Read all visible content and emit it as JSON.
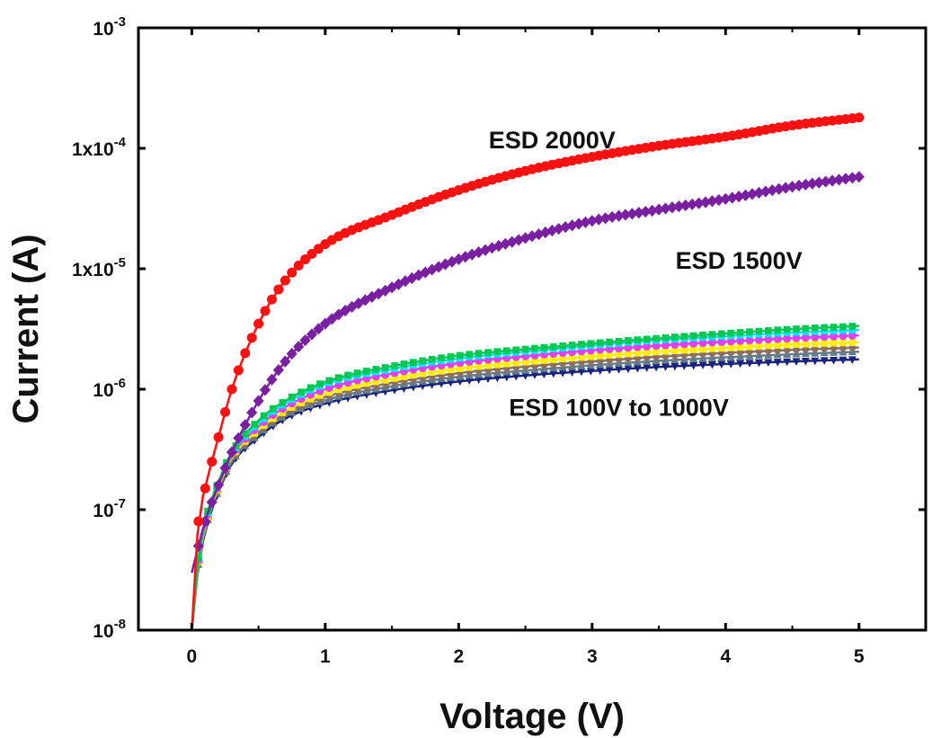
{
  "chart_data": {
    "type": "scatter",
    "title": "",
    "xlabel": "Voltage (V)",
    "ylabel": "Current (A)",
    "xlim": [
      -0.4,
      5.5
    ],
    "ylim": [
      1e-08,
      0.001
    ],
    "yscale": "log",
    "grid": false,
    "legend": "none",
    "x_ticks": [
      {
        "value": 0,
        "label": "0"
      },
      {
        "value": 1,
        "label": "1"
      },
      {
        "value": 2,
        "label": "2"
      },
      {
        "value": 3,
        "label": "3"
      },
      {
        "value": 4,
        "label": "4"
      },
      {
        "value": 5,
        "label": "5"
      }
    ],
    "y_ticks": [
      {
        "value": 1e-08,
        "base": "10",
        "exp": "-8"
      },
      {
        "value": 1e-07,
        "base": "10",
        "exp": "-7"
      },
      {
        "value": 1e-06,
        "base": "10",
        "exp": "-6"
      },
      {
        "value": 1e-05,
        "base": "1x10",
        "exp": "-5"
      },
      {
        "value": 0.0001,
        "base": "1x10",
        "exp": "-4"
      },
      {
        "value": 0.001,
        "base": "10",
        "exp": "-3"
      }
    ],
    "annotations": [
      {
        "text": "ESD 2000V",
        "x": 2.7,
        "y": 0.0001
      },
      {
        "text": "ESD 1500V",
        "x": 4.1,
        "y": 1e-05
      },
      {
        "text": "ESD 100V to 1000V",
        "x": 3.2,
        "y": 6e-07
      }
    ],
    "series": [
      {
        "color": "#ff1010",
        "marker": "circle",
        "x": [
          0,
          0.05,
          0.1,
          0.2,
          0.3,
          0.5,
          0.7,
          1.0,
          1.5,
          2.0,
          2.5,
          3.0,
          3.5,
          4.0,
          4.5,
          5.0
        ],
        "y": [
          1e-08,
          8e-08,
          1.5e-07,
          4e-07,
          1e-06,
          3.5e-06,
          8e-06,
          1.6e-05,
          2.8e-05,
          4.5e-05,
          6.5e-05,
          8.5e-05,
          0.000105,
          0.000125,
          0.000155,
          0.00018
        ]
      },
      {
        "color": "#7b1fa2",
        "marker": "diamond",
        "x": [
          0,
          0.05,
          0.1,
          0.2,
          0.3,
          0.5,
          0.7,
          1.0,
          1.5,
          2.0,
          2.5,
          3.0,
          3.5,
          4.0,
          4.5,
          5.0
        ],
        "y": [
          3e-08,
          5e-08,
          8e-08,
          1.6e-07,
          3e-07,
          8e-07,
          1.7e-06,
          3.5e-06,
          7e-06,
          1.2e-05,
          1.8e-05,
          2.5e-05,
          3.1e-05,
          3.8e-05,
          4.8e-05,
          5.8e-05
        ]
      },
      {
        "color": "#00c853",
        "marker": "square",
        "x": [
          0,
          0.05,
          0.1,
          0.2,
          0.3,
          0.5,
          0.7,
          1.0,
          1.5,
          2.0,
          2.5,
          3.0,
          3.5,
          4.0,
          4.5,
          5.0
        ],
        "y": [
          1e-08,
          4e-08,
          8e-08,
          1.7e-07,
          3e-07,
          5.5e-07,
          8e-07,
          1.15e-06,
          1.55e-06,
          1.9e-06,
          2.15e-06,
          2.4e-06,
          2.65e-06,
          2.9e-06,
          3.15e-06,
          3.35e-06
        ]
      },
      {
        "color": "#00e5ff",
        "marker": "triangle",
        "x": [
          0,
          0.05,
          0.1,
          0.2,
          0.3,
          0.5,
          0.7,
          1.0,
          1.5,
          2.0,
          2.5,
          3.0,
          3.5,
          4.0,
          4.5,
          5.0
        ],
        "y": [
          1e-08,
          4e-08,
          7.8e-08,
          1.65e-07,
          2.9e-07,
          5.2e-07,
          7.6e-07,
          1.1e-06,
          1.47e-06,
          1.8e-06,
          2.05e-06,
          2.3e-06,
          2.55e-06,
          2.75e-06,
          2.95e-06,
          3.1e-06
        ]
      },
      {
        "color": "#e040fb",
        "marker": "circle",
        "x": [
          0,
          0.05,
          0.1,
          0.2,
          0.3,
          0.5,
          0.7,
          1.0,
          1.5,
          2.0,
          2.5,
          3.0,
          3.5,
          4.0,
          4.5,
          5.0
        ],
        "y": [
          1e-08,
          3.8e-08,
          7.5e-08,
          1.6e-07,
          2.8e-07,
          4.9e-07,
          7.1e-07,
          1e-06,
          1.35e-06,
          1.65e-06,
          1.88e-06,
          2.1e-06,
          2.3e-06,
          2.48e-06,
          2.65e-06,
          2.8e-06
        ]
      },
      {
        "color": "#ffee00",
        "marker": "square",
        "x": [
          0,
          0.05,
          0.1,
          0.2,
          0.3,
          0.5,
          0.7,
          1.0,
          1.5,
          2.0,
          2.5,
          3.0,
          3.5,
          4.0,
          4.5,
          5.0
        ],
        "y": [
          1e-08,
          3.7e-08,
          7.2e-08,
          1.55e-07,
          2.7e-07,
          4.6e-07,
          6.6e-07,
          9.2e-07,
          1.22e-06,
          1.48e-06,
          1.68e-06,
          1.87e-06,
          2.05e-06,
          2.2e-06,
          2.35e-06,
          2.45e-06
        ]
      },
      {
        "color": "#8d6e63",
        "marker": "diamond",
        "x": [
          0,
          0.05,
          0.1,
          0.2,
          0.3,
          0.5,
          0.7,
          1.0,
          1.5,
          2.0,
          2.5,
          3.0,
          3.5,
          4.0,
          4.5,
          5.0
        ],
        "y": [
          1e-08,
          3.6e-08,
          7e-08,
          1.5e-07,
          2.6e-07,
          4.4e-07,
          6.3e-07,
          8.6e-07,
          1.13e-06,
          1.36e-06,
          1.54e-06,
          1.7e-06,
          1.86e-06,
          2e-06,
          2.12e-06,
          2.22e-06
        ]
      },
      {
        "color": "#607d8b",
        "marker": "triangle",
        "x": [
          0,
          0.05,
          0.1,
          0.2,
          0.3,
          0.5,
          0.7,
          1.0,
          1.5,
          2.0,
          2.5,
          3.0,
          3.5,
          4.0,
          4.5,
          5.0
        ],
        "y": [
          1e-08,
          3.5e-08,
          6.8e-08,
          1.45e-07,
          2.5e-07,
          4.2e-07,
          6e-07,
          8.1e-07,
          1.06e-06,
          1.27e-06,
          1.43e-06,
          1.58e-06,
          1.72e-06,
          1.84e-06,
          1.95e-06,
          2.05e-06
        ]
      },
      {
        "color": "#1a237e",
        "marker": "triangle-down",
        "x": [
          0,
          0.05,
          0.1,
          0.2,
          0.3,
          0.5,
          0.7,
          1.0,
          1.5,
          2.0,
          2.5,
          3.0,
          3.5,
          4.0,
          4.5,
          5.0
        ],
        "y": [
          1e-08,
          3.4e-08,
          6.5e-08,
          1.4e-07,
          2.4e-07,
          4e-07,
          5.7e-07,
          7.6e-07,
          9.8e-07,
          1.16e-06,
          1.3e-06,
          1.42e-06,
          1.53e-06,
          1.62e-06,
          1.7e-06,
          1.77e-06
        ]
      }
    ]
  }
}
